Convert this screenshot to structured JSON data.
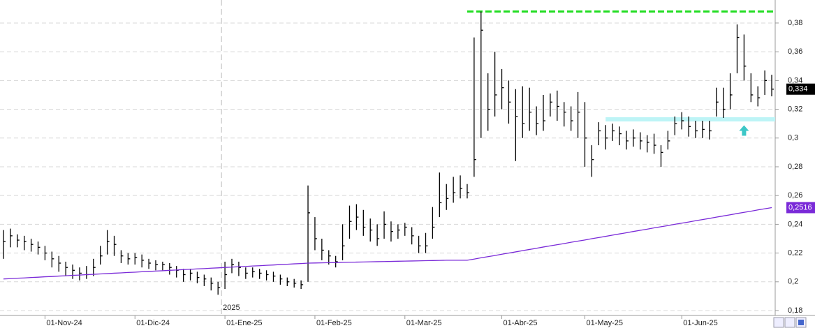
{
  "chart_data": {
    "type": "ohlc",
    "categories": [
      null,
      null,
      null,
      null,
      null,
      null,
      "01-Nov-24",
      null,
      null,
      null,
      null,
      null,
      null,
      null,
      null,
      null,
      null,
      null,
      null,
      "01-Dic-24",
      null,
      null,
      null,
      null,
      null,
      null,
      null,
      null,
      null,
      null,
      null,
      null,
      "01-Ene-25",
      null,
      null,
      null,
      null,
      null,
      null,
      null,
      null,
      null,
      null,
      null,
      null,
      "01-Feb-25",
      null,
      null,
      null,
      null,
      null,
      null,
      null,
      null,
      null,
      null,
      null,
      null,
      "01-Mar-25",
      null,
      null,
      null,
      null,
      null,
      null,
      null,
      null,
      null,
      null,
      null,
      null,
      null,
      "01-Abr-25",
      null,
      null,
      null,
      null,
      null,
      null,
      null,
      null,
      null,
      null,
      null,
      "01-May-25",
      null,
      null,
      null,
      null,
      null,
      null,
      null,
      null,
      null,
      null,
      null,
      null,
      null,
      "01-Jun-25",
      null,
      null,
      null,
      null,
      null,
      null,
      null,
      null,
      null,
      null,
      null,
      null,
      null
    ],
    "series": [
      {
        "type": "ohlc",
        "color": "#000000",
        "high": [
          0.236,
          0.237,
          0.233,
          0.232,
          0.23,
          0.228,
          0.225,
          0.221,
          0.218,
          0.214,
          0.212,
          0.21,
          0.211,
          0.216,
          0.225,
          0.236,
          0.232,
          0.222,
          0.22,
          0.22,
          0.219,
          0.216,
          0.215,
          0.214,
          0.213,
          0.211,
          0.209,
          0.209,
          0.207,
          0.205,
          0.203,
          0.2,
          0.214,
          0.216,
          0.214,
          0.21,
          0.21,
          0.209,
          0.208,
          0.207,
          0.205,
          0.203,
          0.202,
          0.201,
          0.267,
          0.245,
          0.23,
          0.222,
          0.218,
          0.24,
          0.253,
          0.254,
          0.25,
          0.244,
          0.24,
          0.249,
          0.242,
          0.24,
          0.241,
          0.238,
          0.232,
          0.234,
          0.252,
          0.276,
          0.268,
          0.273,
          0.274,
          0.268,
          0.37,
          0.388,
          0.345,
          0.36,
          0.348,
          0.34,
          0.334,
          0.336,
          0.335,
          0.322,
          0.33,
          0.331,
          0.333,
          0.325,
          0.322,
          0.332,
          0.325,
          0.295,
          0.311,
          0.309,
          0.31,
          0.308,
          0.305,
          0.306,
          0.304,
          0.302,
          0.303,
          0.295,
          0.305,
          0.315,
          0.318,
          0.315,
          0.312,
          0.312,
          0.312,
          0.335,
          0.335,
          0.345,
          0.379,
          0.372,
          0.345,
          0.336,
          0.347,
          0.344
        ],
        "low": [
          0.216,
          0.224,
          0.224,
          0.222,
          0.221,
          0.219,
          0.215,
          0.21,
          0.207,
          0.204,
          0.202,
          0.201,
          0.202,
          0.204,
          0.212,
          0.219,
          0.218,
          0.213,
          0.212,
          0.212,
          0.21,
          0.209,
          0.208,
          0.208,
          0.205,
          0.203,
          0.2,
          0.201,
          0.199,
          0.197,
          0.194,
          0.191,
          0.195,
          0.206,
          0.204,
          0.202,
          0.203,
          0.202,
          0.201,
          0.2,
          0.198,
          0.197,
          0.196,
          0.195,
          0.2,
          0.222,
          0.215,
          0.212,
          0.21,
          0.215,
          0.23,
          0.236,
          0.232,
          0.228,
          0.225,
          0.23,
          0.228,
          0.23,
          0.232,
          0.226,
          0.22,
          0.22,
          0.23,
          0.245,
          0.25,
          0.255,
          0.258,
          0.258,
          0.273,
          0.3,
          0.305,
          0.315,
          0.32,
          0.31,
          0.284,
          0.3,
          0.305,
          0.302,
          0.305,
          0.315,
          0.312,
          0.308,
          0.305,
          0.3,
          0.28,
          0.273,
          0.295,
          0.292,
          0.298,
          0.295,
          0.292,
          0.294,
          0.292,
          0.29,
          0.289,
          0.28,
          0.292,
          0.302,
          0.306,
          0.301,
          0.3,
          0.3,
          0.299,
          0.315,
          0.314,
          0.32,
          0.345,
          0.34,
          0.325,
          0.322,
          0.33,
          0.329
        ],
        "close": [
          0.228,
          0.232,
          0.229,
          0.228,
          0.226,
          0.224,
          0.22,
          0.216,
          0.213,
          0.21,
          0.208,
          0.206,
          0.205,
          0.21,
          0.218,
          0.228,
          0.226,
          0.218,
          0.216,
          0.217,
          0.215,
          0.213,
          0.212,
          0.212,
          0.21,
          0.208,
          0.205,
          0.206,
          0.203,
          0.202,
          0.199,
          0.196,
          0.205,
          0.212,
          0.21,
          0.206,
          0.207,
          0.206,
          0.205,
          0.204,
          0.202,
          0.2,
          0.199,
          0.198,
          0.248,
          0.23,
          0.222,
          0.218,
          0.214,
          0.225,
          0.242,
          0.245,
          0.238,
          0.236,
          0.23,
          0.24,
          0.235,
          0.236,
          0.238,
          0.232,
          0.225,
          0.225,
          0.238,
          0.255,
          0.258,
          0.262,
          0.265,
          0.262,
          0.285,
          0.375,
          0.32,
          0.33,
          0.335,
          0.325,
          0.315,
          0.31,
          0.318,
          0.31,
          0.312,
          0.325,
          0.322,
          0.318,
          0.312,
          0.318,
          0.3,
          0.285,
          0.305,
          0.3,
          0.305,
          0.303,
          0.298,
          0.3,
          0.298,
          0.297,
          0.295,
          0.29,
          0.298,
          0.31,
          0.312,
          0.308,
          0.305,
          0.306,
          0.305,
          0.325,
          0.32,
          0.33,
          0.37,
          0.35,
          0.33,
          0.328,
          0.34,
          0.334
        ],
        "price_label": {
          "value": 0.334,
          "label": "0,334"
        }
      },
      {
        "type": "line",
        "color": "#7a2ad8",
        "values": [
          0.202,
          0.2022,
          0.2025,
          0.2027,
          0.203,
          0.2032,
          0.2035,
          0.2037,
          0.204,
          0.2042,
          0.2045,
          0.2047,
          0.205,
          0.2052,
          0.2055,
          0.2057,
          0.206,
          0.2062,
          0.2065,
          0.2067,
          0.207,
          0.2072,
          0.2075,
          0.2077,
          0.208,
          0.2082,
          0.2085,
          0.2087,
          0.209,
          0.2092,
          0.2095,
          0.2097,
          0.21,
          0.2102,
          0.2105,
          0.2107,
          0.211,
          0.2112,
          0.2115,
          0.2117,
          0.212,
          0.2122,
          0.2125,
          0.2127,
          0.213,
          0.2131,
          0.2132,
          0.2133,
          0.2134,
          0.2135,
          0.2136,
          0.2137,
          0.2138,
          0.2139,
          0.214,
          0.2141,
          0.2142,
          0.2143,
          0.2144,
          0.2145,
          0.2146,
          0.2147,
          0.2148,
          0.2149,
          0.215,
          0.215,
          0.215,
          0.215,
          0.2158,
          0.2167,
          0.2175,
          0.2183,
          0.2192,
          0.22,
          0.2208,
          0.2217,
          0.2225,
          0.2233,
          0.2242,
          0.225,
          0.2258,
          0.2266,
          0.2275,
          0.2283,
          0.2291,
          0.23,
          0.2308,
          0.2316,
          0.2325,
          0.2333,
          0.2341,
          0.235,
          0.2358,
          0.2366,
          0.2375,
          0.2383,
          0.2391,
          0.24,
          0.2408,
          0.2416,
          0.2425,
          0.2433,
          0.2441,
          0.245,
          0.2458,
          0.2466,
          0.2475,
          0.2483,
          0.2491,
          0.25,
          0.2508,
          0.2516
        ],
        "price_label": {
          "value": 0.2516,
          "label": "0,2516"
        }
      }
    ],
    "ylim": [
      0.1766,
      0.396
    ],
    "yticks": [
      {
        "value": 0.18,
        "label": "0,18"
      },
      {
        "value": 0.2,
        "label": "0,2"
      },
      {
        "value": 0.22,
        "label": "0,22"
      },
      {
        "value": 0.24,
        "label": "0,24"
      },
      {
        "value": 0.26,
        "label": "0,26"
      },
      {
        "value": 0.28,
        "label": "0,28"
      },
      {
        "value": 0.3,
        "label": "0,3"
      },
      {
        "value": 0.32,
        "label": "0,32"
      },
      {
        "value": 0.34,
        "label": "0,34"
      },
      {
        "value": 0.36,
        "label": "0,36"
      },
      {
        "value": 0.38,
        "label": "0,38"
      }
    ],
    "grid": true,
    "annotations": {
      "resistance": {
        "value": 0.388,
        "from": 67,
        "color": "#22dd22"
      },
      "support": {
        "value": 0.313,
        "from": 87,
        "color": "#bdf4f6"
      },
      "arrow": {
        "category": 107,
        "value": 0.305,
        "color": "#3cc7c7"
      },
      "year_marker": {
        "category": 32,
        "label": "2025"
      }
    }
  }
}
